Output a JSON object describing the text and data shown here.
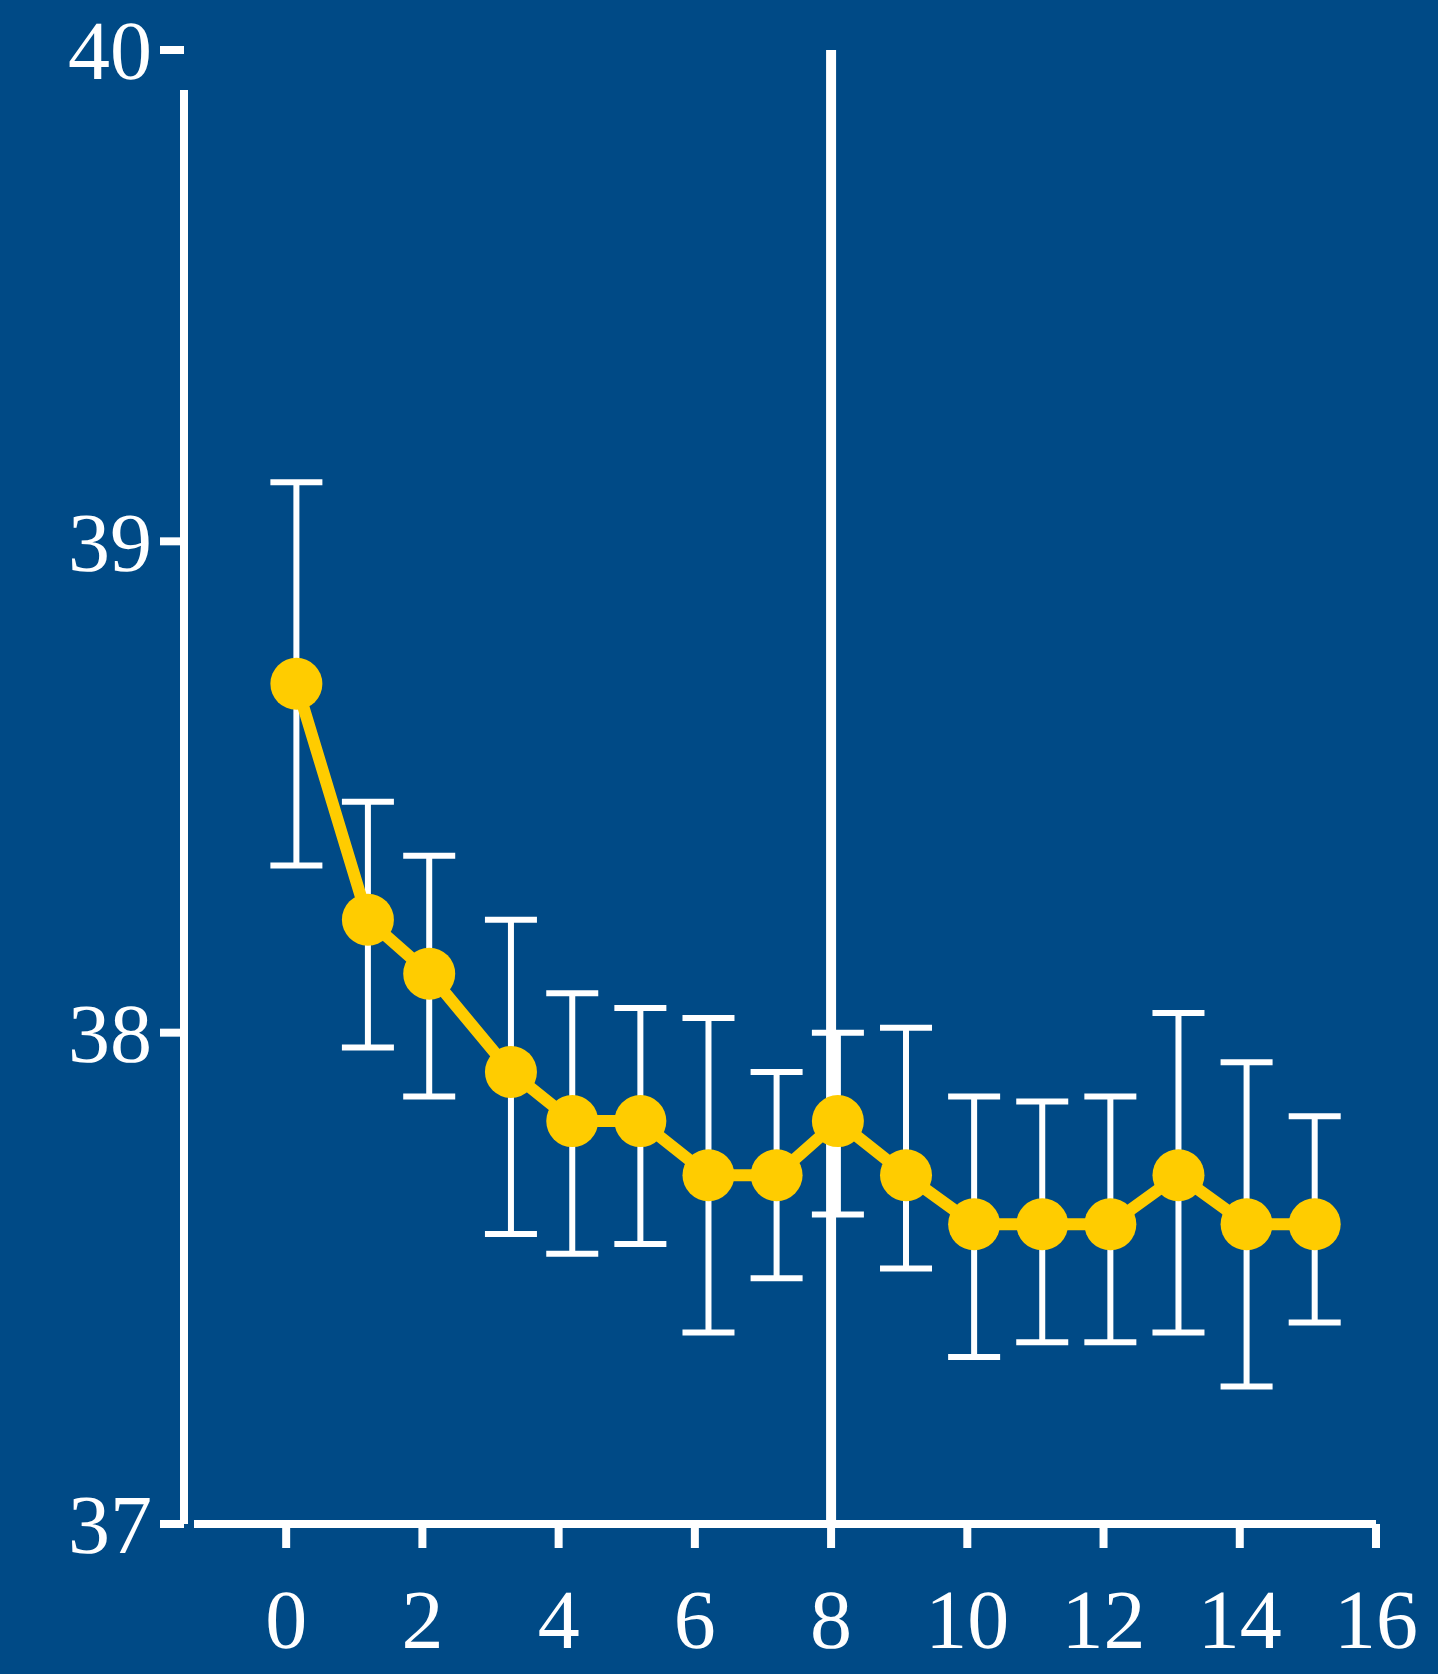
{
  "chart_data": {
    "type": "line",
    "x": [
      0.15,
      1.2,
      2.1,
      3.3,
      4.2,
      5.2,
      6.2,
      7.2,
      8.1,
      9.1,
      10.1,
      11.1,
      12.1,
      13.1,
      14.1,
      15.1
    ],
    "series": [
      {
        "color": "#ffcc00",
        "values": [
          38.71,
          38.23,
          38.12,
          37.92,
          37.82,
          37.82,
          37.71,
          37.71,
          37.82,
          37.71,
          37.61,
          37.61,
          37.61,
          37.71,
          37.61,
          37.61
        ],
        "errors": [
          [
            38.34,
            39.12
          ],
          [
            37.97,
            38.47
          ],
          [
            37.87,
            38.36
          ],
          [
            37.59,
            38.23
          ],
          [
            37.55,
            38.08
          ],
          [
            37.57,
            38.05
          ],
          [
            37.39,
            38.03
          ],
          [
            37.5,
            37.92
          ],
          [
            37.63,
            38.0
          ],
          [
            37.52,
            38.01
          ],
          [
            37.34,
            37.87
          ],
          [
            37.37,
            37.86
          ],
          [
            37.37,
            37.87
          ],
          [
            37.39,
            38.04
          ],
          [
            37.28,
            37.94
          ],
          [
            37.41,
            37.83
          ]
        ]
      }
    ],
    "xlim": [
      -1.5,
      16
    ],
    "xticks": [
      0,
      2,
      4,
      6,
      8,
      10,
      12,
      14,
      16
    ],
    "ylim": [
      37,
      40
    ],
    "yticks": [
      37,
      38,
      39,
      40
    ],
    "ref_lines": [
      {
        "axis": "x",
        "value": 8,
        "color": "#ffffff"
      }
    ],
    "grid": false,
    "marker": "circle",
    "line_style": "solid"
  }
}
